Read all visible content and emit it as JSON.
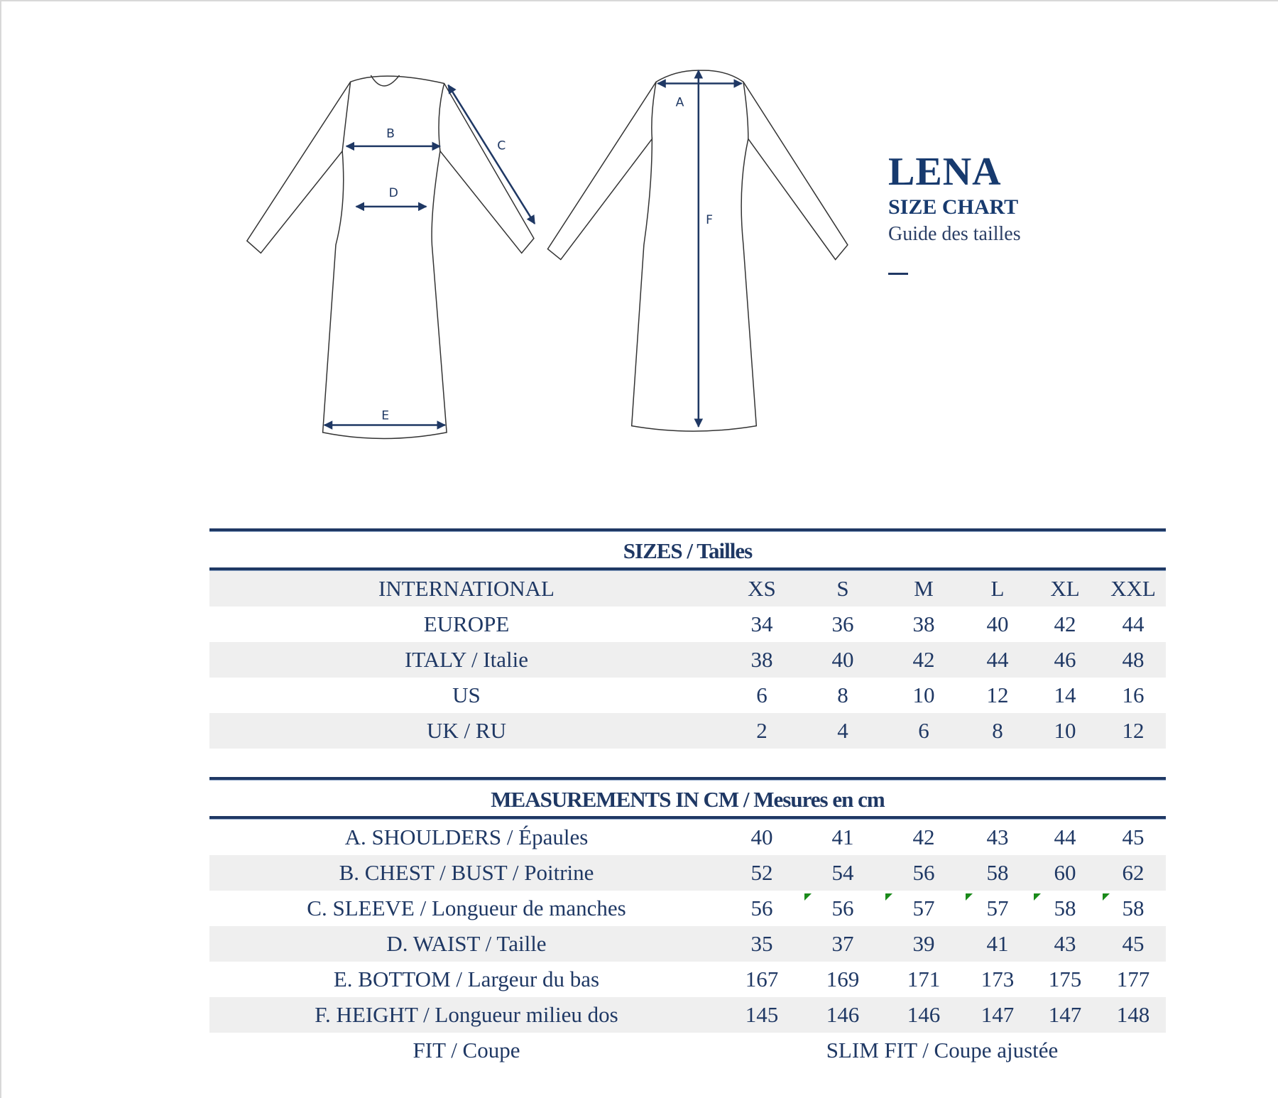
{
  "brand": {
    "title": "LENA",
    "subtitle": "SIZE CHART",
    "subtitle_fr": "Guide des tailles"
  },
  "diagram_labels": {
    "a": "A",
    "b": "B",
    "c": "C",
    "d": "D",
    "e": "E",
    "f": "F"
  },
  "sizes": {
    "header": "SIZES / Tailles",
    "rows": [
      {
        "label": "INTERNATIONAL",
        "values": [
          "XS",
          "S",
          "M",
          "L",
          "XL",
          "XXL"
        ]
      },
      {
        "label": "EUROPE",
        "values": [
          "34",
          "36",
          "38",
          "40",
          "42",
          "44"
        ]
      },
      {
        "label": "ITALY / Italie",
        "values": [
          "38",
          "40",
          "42",
          "44",
          "46",
          "48"
        ]
      },
      {
        "label": "US",
        "values": [
          "6",
          "8",
          "10",
          "12",
          "14",
          "16"
        ]
      },
      {
        "label": "UK / RU",
        "values": [
          "2",
          "4",
          "6",
          "8",
          "10",
          "12"
        ]
      }
    ]
  },
  "measurements": {
    "header": "MEASUREMENTS IN CM / Mesures en cm",
    "rows": [
      {
        "label": "A. SHOULDERS / Épaules",
        "values": [
          "40",
          "41",
          "42",
          "43",
          "44",
          "45"
        ]
      },
      {
        "label": "B. CHEST / BUST / Poitrine",
        "values": [
          "52",
          "54",
          "56",
          "58",
          "60",
          "62"
        ]
      },
      {
        "label": "C. SLEEVE / Longueur de manches",
        "values": [
          "56",
          "56",
          "57",
          "57",
          "58",
          "58"
        ]
      },
      {
        "label": "D. WAIST / Taille",
        "values": [
          "35",
          "37",
          "39",
          "41",
          "43",
          "45"
        ]
      },
      {
        "label": "E. BOTTOM / Largeur du bas",
        "values": [
          "167",
          "169",
          "171",
          "173",
          "175",
          "177"
        ]
      },
      {
        "label": "F. HEIGHT / Longueur milieu dos",
        "values": [
          "145",
          "146",
          "146",
          "147",
          "147",
          "148"
        ]
      }
    ],
    "fit": {
      "label": "FIT / Coupe",
      "value": "SLIM FIT / Coupe ajustée"
    }
  },
  "colors": {
    "navy": "#1f3864",
    "row_shade": "#efefef",
    "comment_marker": "#1a8a1a"
  }
}
